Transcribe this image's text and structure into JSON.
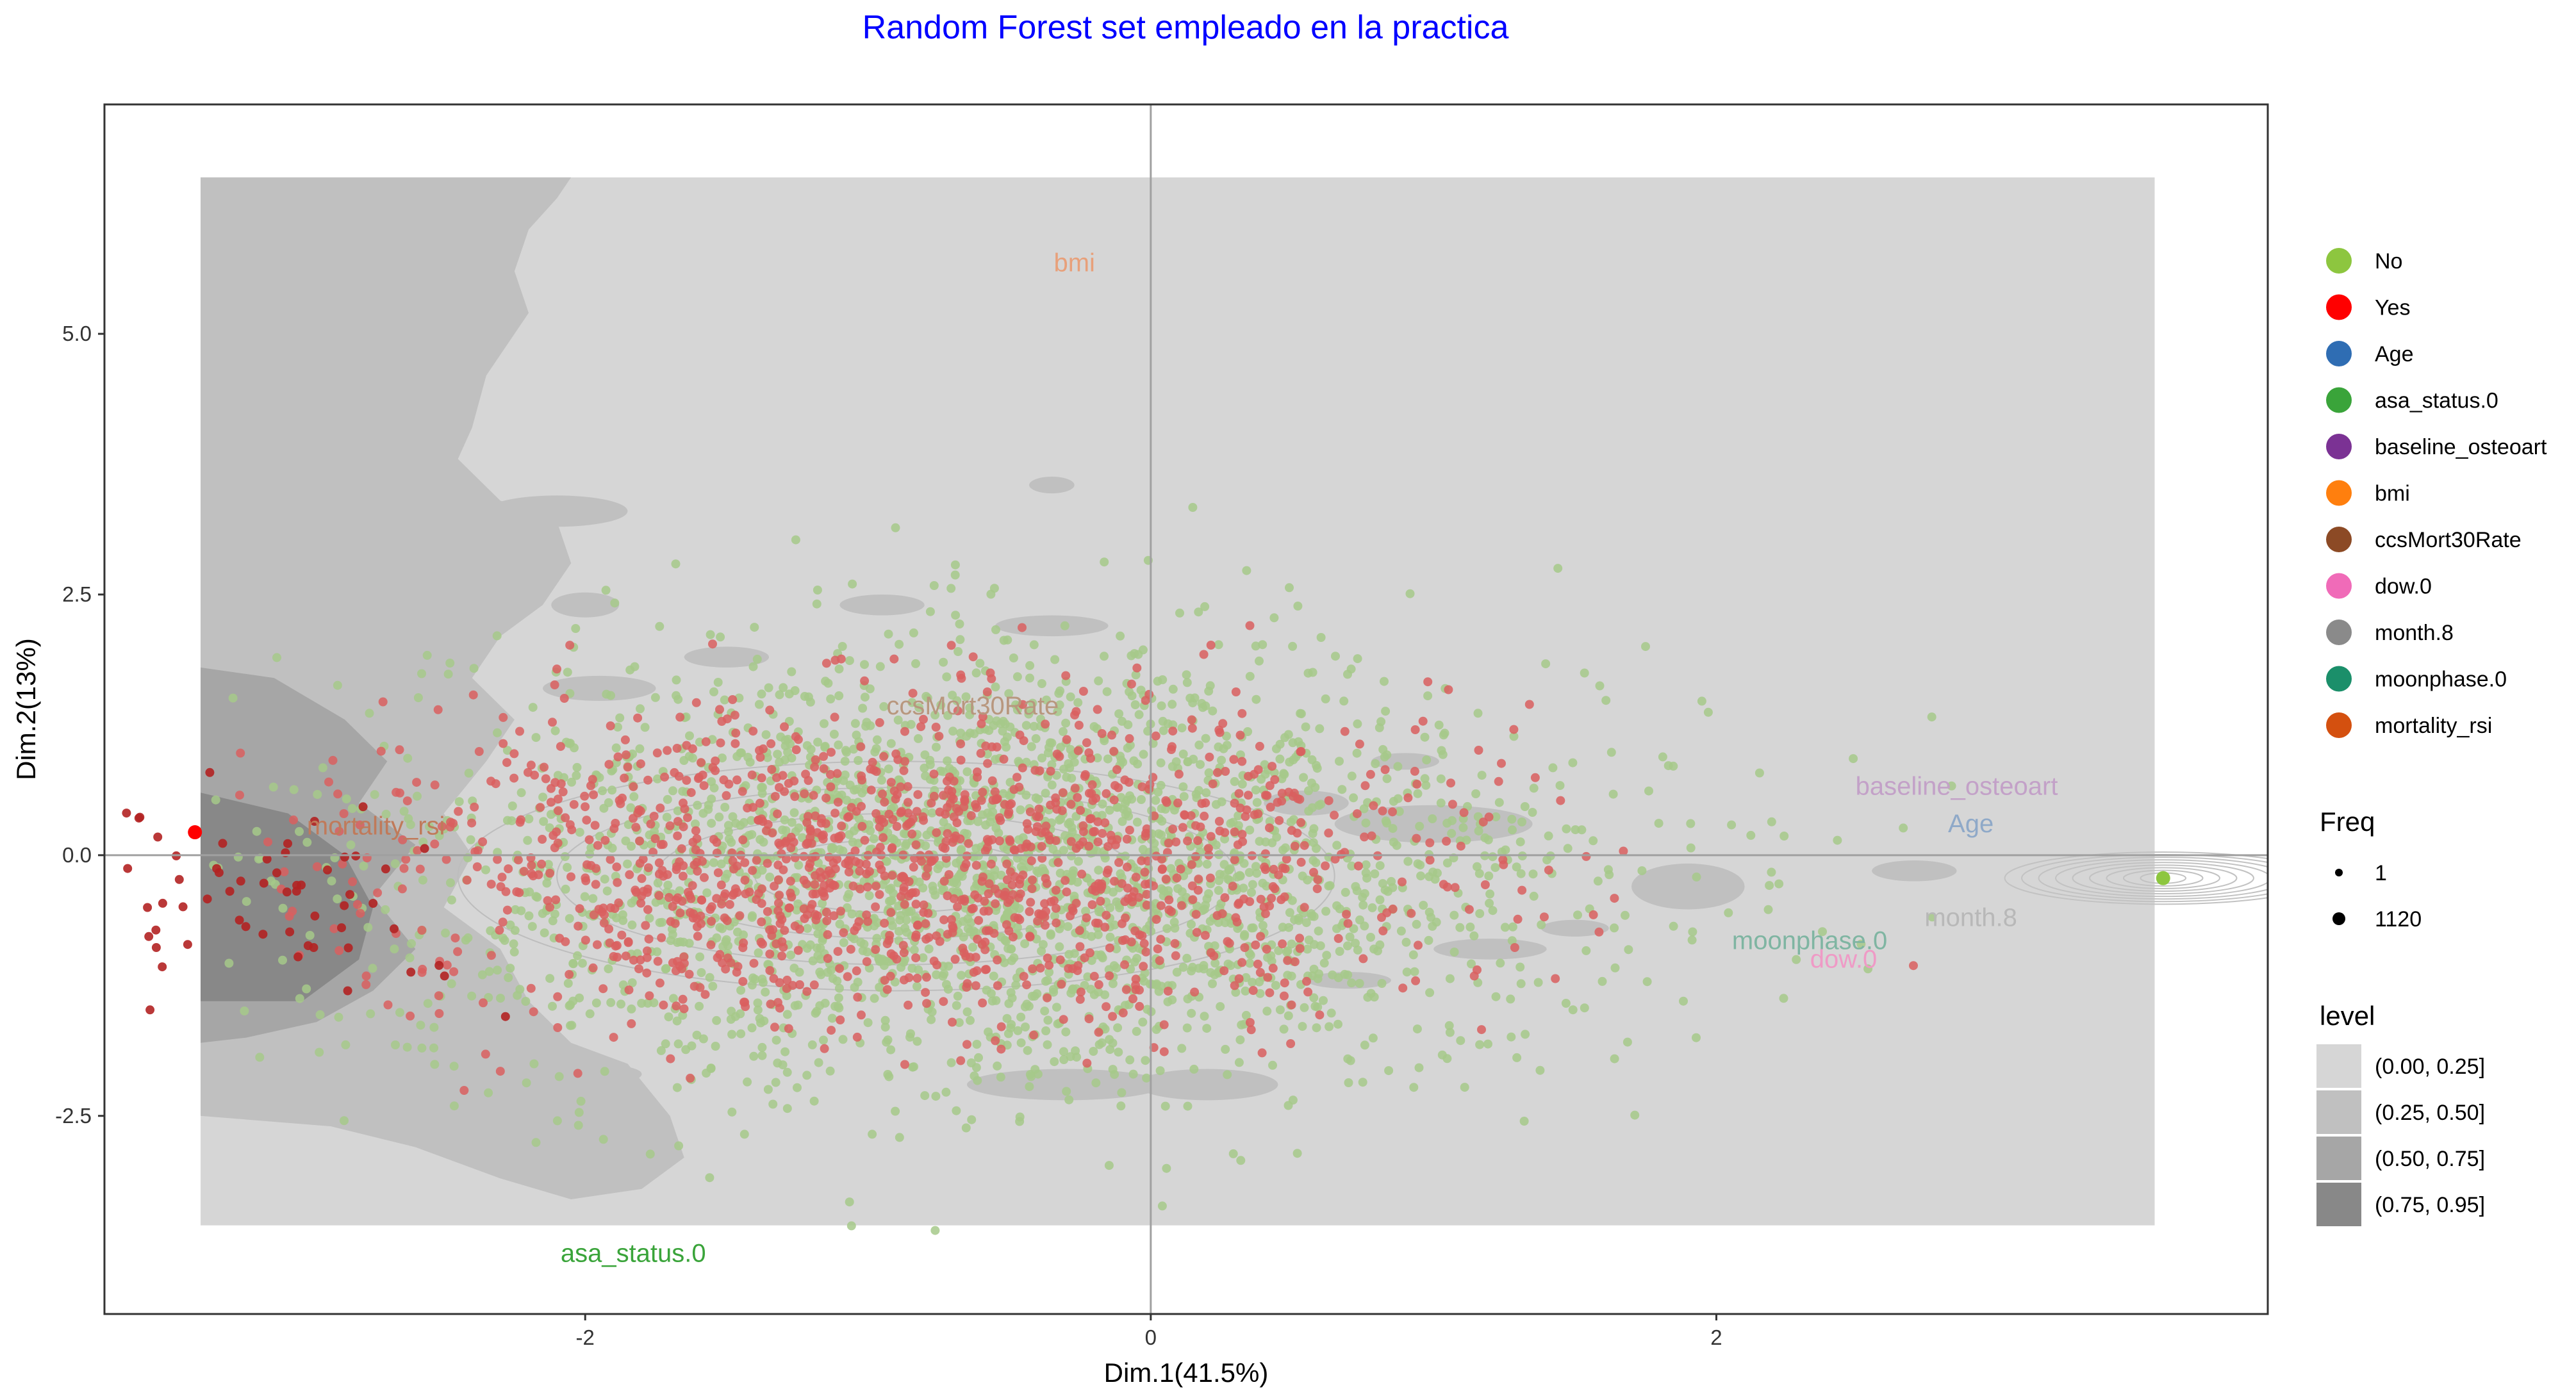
{
  "chart_data": {
    "type": "scatter",
    "title": "Random Forest set empleado en la practica",
    "xlabel": "Dim.1(41.5%)",
    "ylabel": "Dim.2(13%)",
    "xlim": [
      -3.7,
      3.95
    ],
    "ylim": [
      -4.4,
      7.2
    ],
    "x_ticks": [
      -2,
      0,
      2
    ],
    "x_tick_labels": [
      "-2",
      "0",
      "2"
    ],
    "y_ticks": [
      -2.5,
      0.0,
      2.5,
      5.0
    ],
    "y_tick_labels": [
      "-2.5",
      "0.0",
      "2.5",
      "5.0"
    ],
    "grid": false,
    "legend_position": "right",
    "colors": {
      "title": "#0000ff",
      "No": "#8dc63f",
      "Yes": "#ff0000",
      "points_no": "#a6c98a",
      "points_yes": "#d95f5f",
      "points_yes_dark": "#b22222",
      "level_1": "#d6d6d6",
      "level_2": "#c0c0c0",
      "level_3": "#a6a6a6",
      "level_4": "#888888",
      "panel_bg": "#ffffff",
      "refline": "#a0a0a0"
    },
    "variables": [
      {
        "name": "bmi",
        "x": -0.27,
        "y": 5.6,
        "color": "#e8a07a"
      },
      {
        "name": "ccsMort30Rate",
        "x": -0.63,
        "y": 1.35,
        "color": "#b8977e"
      },
      {
        "name": "mortality_rsi",
        "x": -2.74,
        "y": 0.2,
        "color": "#c07a5a"
      },
      {
        "name": "baseline_osteoart",
        "x": 2.85,
        "y": 0.58,
        "color": "#c3a1c8"
      },
      {
        "name": "Age",
        "x": 2.9,
        "y": 0.22,
        "color": "#8fa9c8"
      },
      {
        "name": "month.8",
        "x": 2.9,
        "y": -0.68,
        "color": "#b8b8b8"
      },
      {
        "name": "moonphase.0",
        "x": 2.33,
        "y": -0.9,
        "color": "#7fb5a2"
      },
      {
        "name": "dow.0",
        "x": 2.45,
        "y": -1.08,
        "color": "#ef9ac6"
      },
      {
        "name": "asa_status.0",
        "x": -1.83,
        "y": -3.9,
        "color": "#3aa43a"
      }
    ],
    "legends": {
      "color": {
        "title": "",
        "items": [
          {
            "label": "No",
            "color": "#8dc63f"
          },
          {
            "label": "Yes",
            "color": "#ff0000"
          },
          {
            "label": "Age",
            "color": "#2f6db3"
          },
          {
            "label": "asa_status.0",
            "color": "#3aa43a"
          },
          {
            "label": "baseline_osteoart",
            "color": "#7b3294"
          },
          {
            "label": "bmi",
            "color": "#ff7f0e"
          },
          {
            "label": "ccsMort30Rate",
            "color": "#8c4a25"
          },
          {
            "label": "dow.0",
            "color": "#f06bb8"
          },
          {
            "label": "month.8",
            "color": "#8a8a8a"
          },
          {
            "label": "moonphase.0",
            "color": "#1b8f6a"
          },
          {
            "label": "mortality_rsi",
            "color": "#d4500f"
          }
        ]
      },
      "freq": {
        "title": "Freq",
        "items": [
          {
            "label": "1"
          },
          {
            "label": "1120"
          }
        ]
      },
      "level": {
        "title": "level",
        "items": [
          {
            "label": "(0.00, 0.25]",
            "color": "#d6d6d6"
          },
          {
            "label": "(0.25, 0.50]",
            "color": "#c0c0c0"
          },
          {
            "label": "(0.50, 0.75]",
            "color": "#a6a6a6"
          },
          {
            "label": "(0.75, 0.95]",
            "color": "#888888"
          }
        ]
      }
    },
    "highlighted_points": [
      {
        "x": 3.58,
        "y": -0.22,
        "class": "No"
      },
      {
        "x": -3.38,
        "y": 0.22,
        "class": "Yes"
      }
    ],
    "series": [
      {
        "name": "No",
        "n": 2600,
        "center": [
          -0.55,
          -0.15
        ],
        "spread": [
          1.05,
          1.05
        ]
      },
      {
        "name": "Yes",
        "n": 1400,
        "center": [
          -0.85,
          -0.05
        ],
        "spread": [
          0.95,
          0.75
        ]
      }
    ]
  }
}
